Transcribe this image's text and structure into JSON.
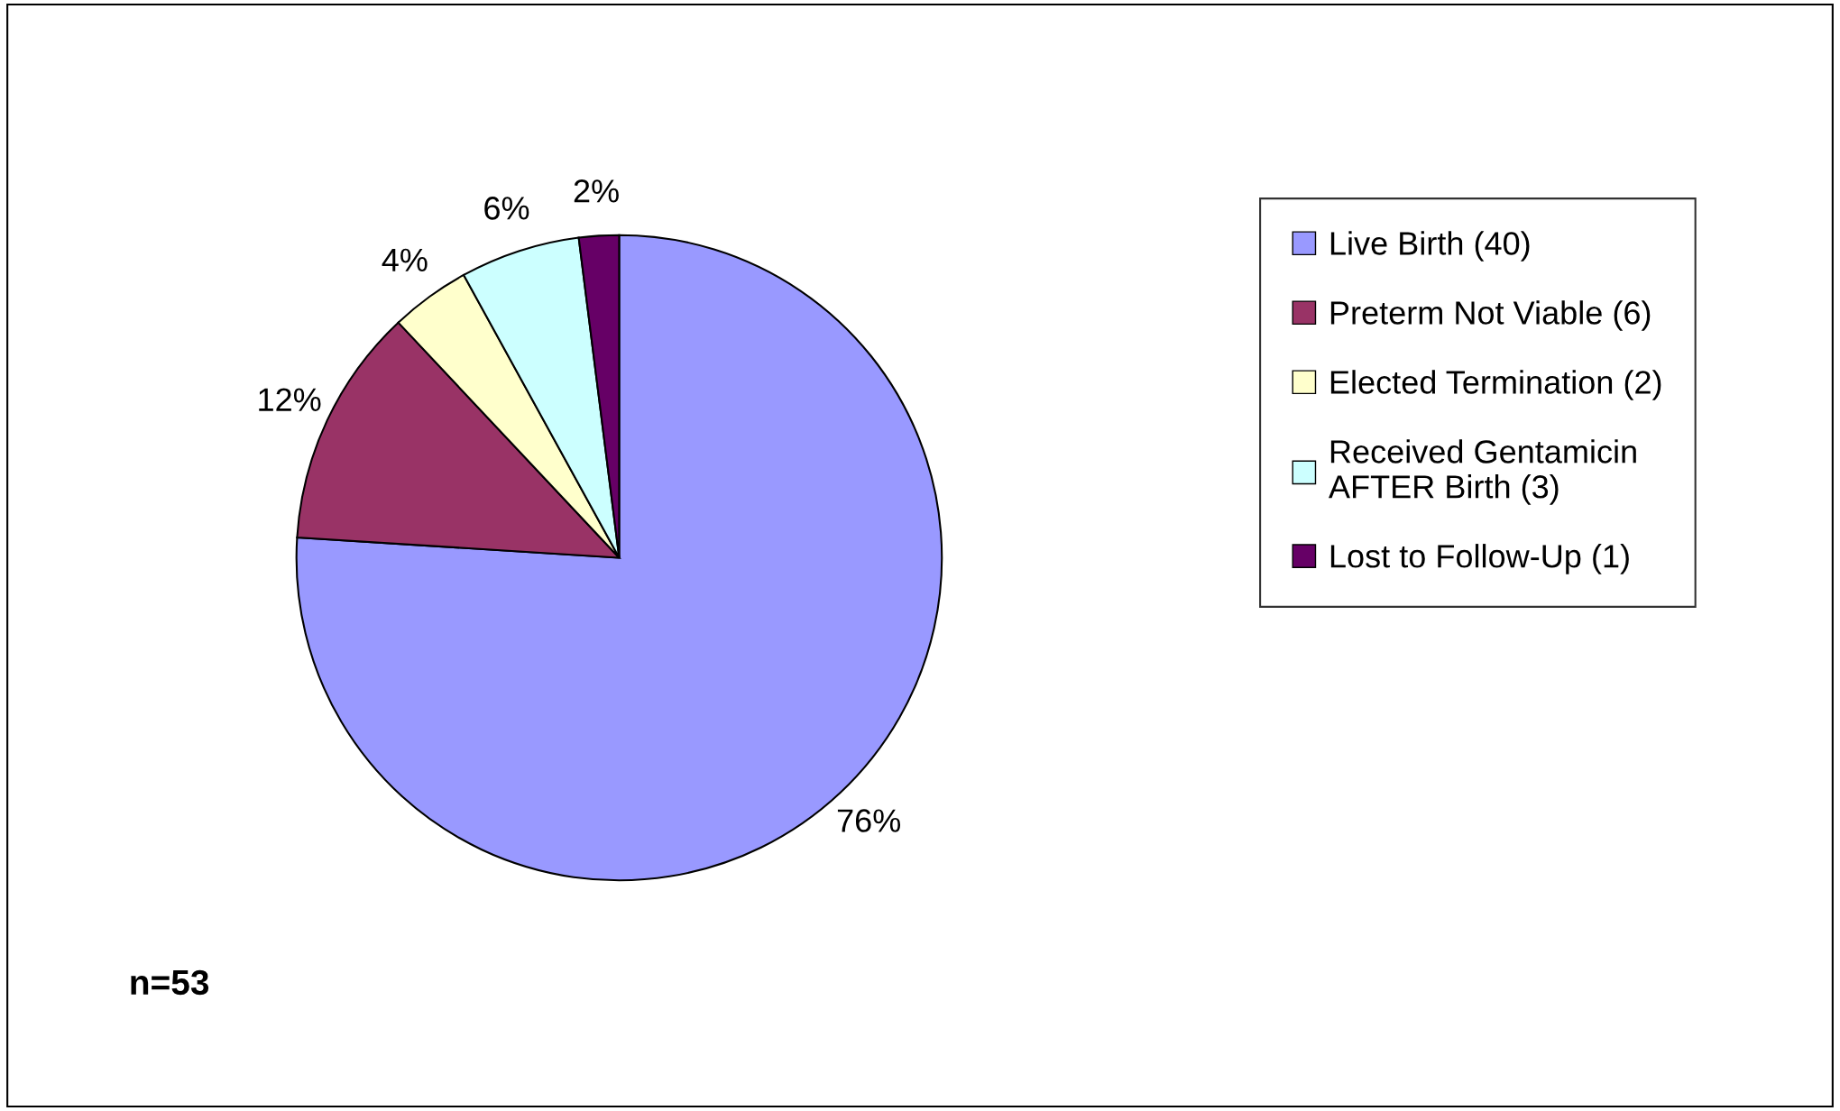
{
  "chart_data": {
    "type": "pie",
    "categories": [
      "Live Birth (40)",
      "Preterm Not Viable (6)",
      "Elected Termination (2)",
      "Received Gentamicin\nAFTER Birth (3)",
      "Lost to Follow-Up (1)"
    ],
    "values": [
      76,
      12,
      4,
      6,
      2
    ],
    "value_labels": [
      "76%",
      "12%",
      "4%",
      "6%",
      "2%"
    ],
    "colors": [
      "#9999ff",
      "#993366",
      "#ffffcc",
      "#ccffff",
      "#660066"
    ],
    "legend": "right",
    "annotations": [
      "n=53"
    ]
  }
}
